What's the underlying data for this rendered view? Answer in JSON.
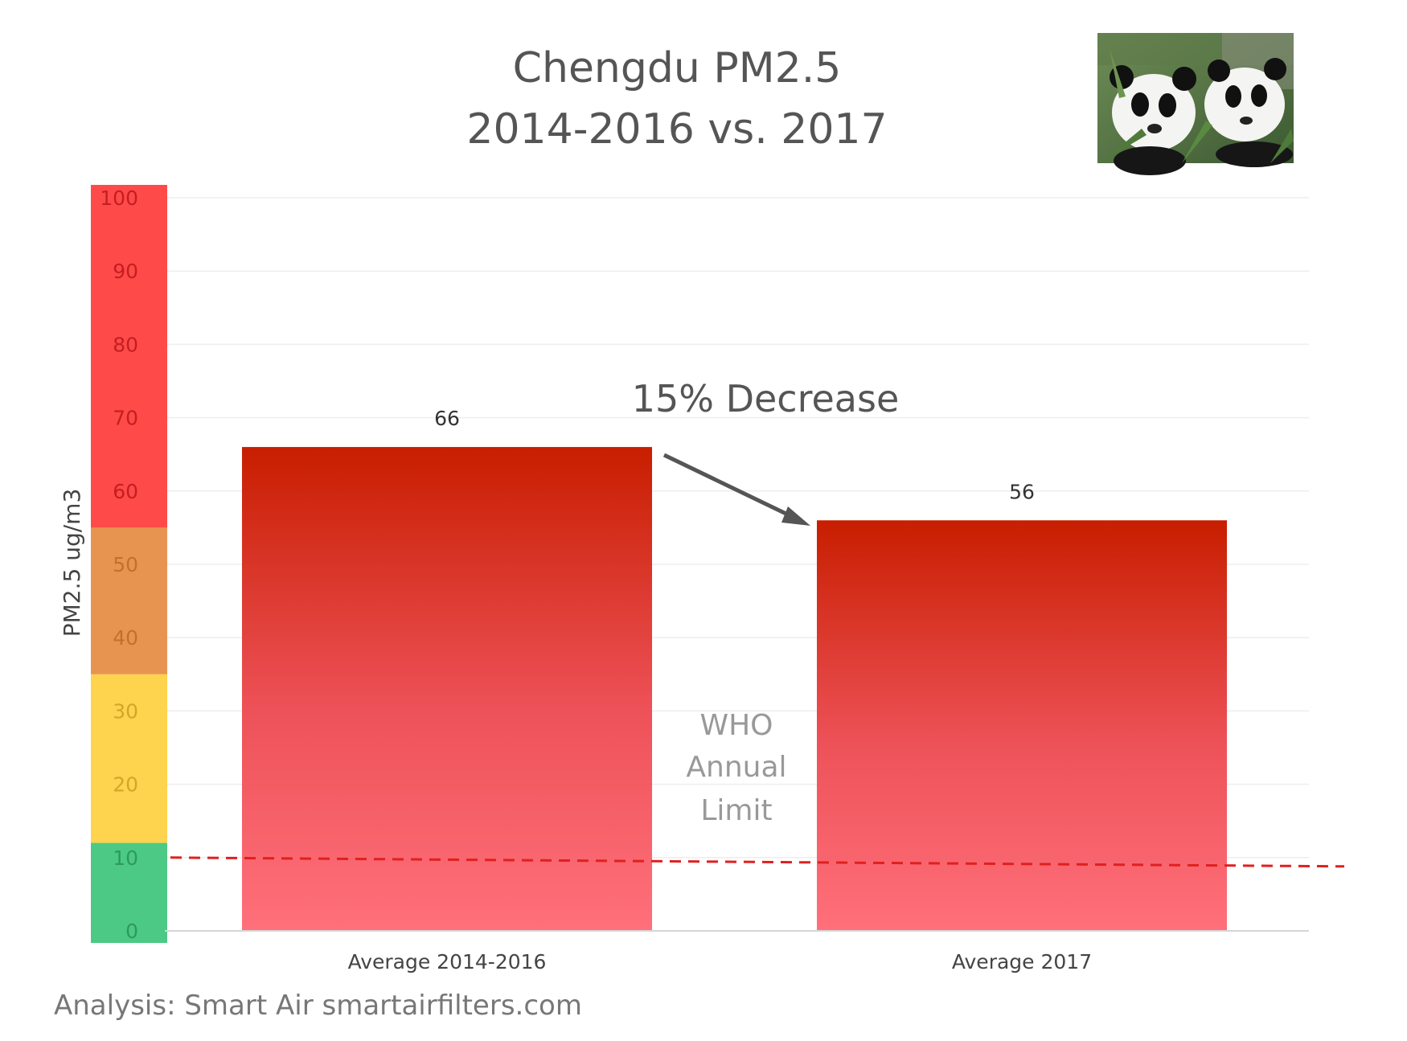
{
  "chart_data": {
    "type": "bar",
    "title": [
      "Chengdu PM2.5",
      "2014-2016 vs. 2017"
    ],
    "categories": [
      "Average 2014-2016",
      "Average 2017"
    ],
    "values": [
      66,
      56
    ],
    "value_labels": [
      "66",
      "56"
    ],
    "ylabel": "PM2.5 ug/m3",
    "ylim": [
      0,
      100
    ],
    "yticks": [
      "0",
      "10",
      "20",
      "30",
      "40",
      "50",
      "60",
      "70",
      "80",
      "90",
      "100"
    ],
    "grid": true,
    "bar_color_top": "#c81e00",
    "bar_color_bottom": "#ff707a",
    "aqi_bands": [
      {
        "from": 0,
        "to": 12,
        "color": "#4cc985"
      },
      {
        "from": 12,
        "to": 35,
        "color": "#fed34e"
      },
      {
        "from": 35,
        "to": 55,
        "color": "#e89451"
      },
      {
        "from": 55,
        "to": 100,
        "color": "#ff4a4a"
      }
    ],
    "reference_line": {
      "value": 10,
      "color": "#e02020",
      "style": "dashed"
    },
    "reference_label": [
      "WHO",
      "Annual",
      "Limit"
    ],
    "annotation": "15% Decrease",
    "footer": "Analysis: Smart Air smartairfilters.com",
    "image": "panda-photo"
  }
}
